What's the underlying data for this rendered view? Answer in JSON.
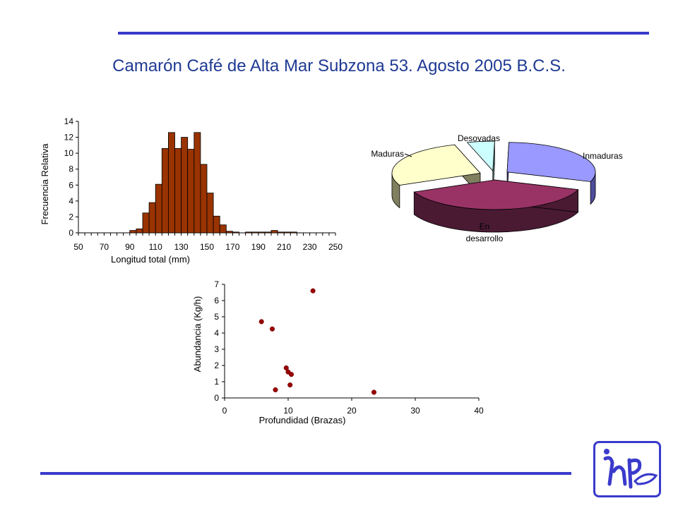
{
  "title": "Camarón Café de Alta Mar Subzona 53. Agosto 2005 B.C.S.",
  "chart_data": [
    {
      "type": "bar",
      "xlabel": "Longitud total (mm)",
      "ylabel": "Frecuencia Relativa",
      "xlim": [
        50,
        250
      ],
      "ylim": [
        0,
        14
      ],
      "xticks": [
        50,
        70,
        90,
        110,
        130,
        150,
        170,
        190,
        210,
        230,
        250
      ],
      "yticks": [
        0,
        2,
        4,
        6,
        8,
        10,
        12,
        14
      ],
      "bin_width": 5,
      "bar_color": "#993300",
      "x": [
        90,
        95,
        100,
        105,
        110,
        115,
        120,
        125,
        130,
        135,
        140,
        145,
        150,
        155,
        160,
        165,
        170,
        175,
        180,
        185,
        190,
        195,
        200,
        205,
        210,
        215
      ],
      "values": [
        0.3,
        0.5,
        2.5,
        3.8,
        6.1,
        10.6,
        12.6,
        10.6,
        12.0,
        10.5,
        12.6,
        8.6,
        5.0,
        2.1,
        1.0,
        0.2,
        0.1,
        0.0,
        0.1,
        0.1,
        0.1,
        0.1,
        0.3,
        0.1,
        0.1,
        0.1
      ]
    },
    {
      "type": "pie",
      "style": "3d-exploded",
      "labels": [
        "Inmaduras",
        "En desarrollo",
        "Maduras",
        "Desovadas"
      ],
      "values": [
        30,
        38,
        27,
        5
      ],
      "colors": [
        "#9999ff",
        "#993366",
        "#ffffcc",
        "#ccffff"
      ],
      "side_colors": [
        "#4d4d99",
        "#4a1a33",
        "#808060",
        "#608080"
      ]
    },
    {
      "type": "scatter",
      "xlabel": "Profundidad (Brazas)",
      "ylabel": "Abundancia (Kg/h)",
      "xlim": [
        0,
        40
      ],
      "ylim": [
        0,
        7
      ],
      "xticks": [
        0,
        10,
        20,
        30,
        40
      ],
      "yticks": [
        0,
        1,
        2,
        3,
        4,
        5,
        6,
        7
      ],
      "marker_color": "#990000",
      "points": [
        {
          "x": 5.8,
          "y": 4.7
        },
        {
          "x": 7.5,
          "y": 4.25
        },
        {
          "x": 8.0,
          "y": 0.5
        },
        {
          "x": 9.7,
          "y": 1.85
        },
        {
          "x": 10.0,
          "y": 1.6
        },
        {
          "x": 10.5,
          "y": 1.45
        },
        {
          "x": 10.3,
          "y": 0.8
        },
        {
          "x": 13.9,
          "y": 6.6
        },
        {
          "x": 23.5,
          "y": 0.35
        }
      ]
    }
  ],
  "colors": {
    "rule": "#3a3acc",
    "title": "#1f3a93"
  },
  "logo": {
    "icon": "inp-logo-icon"
  }
}
